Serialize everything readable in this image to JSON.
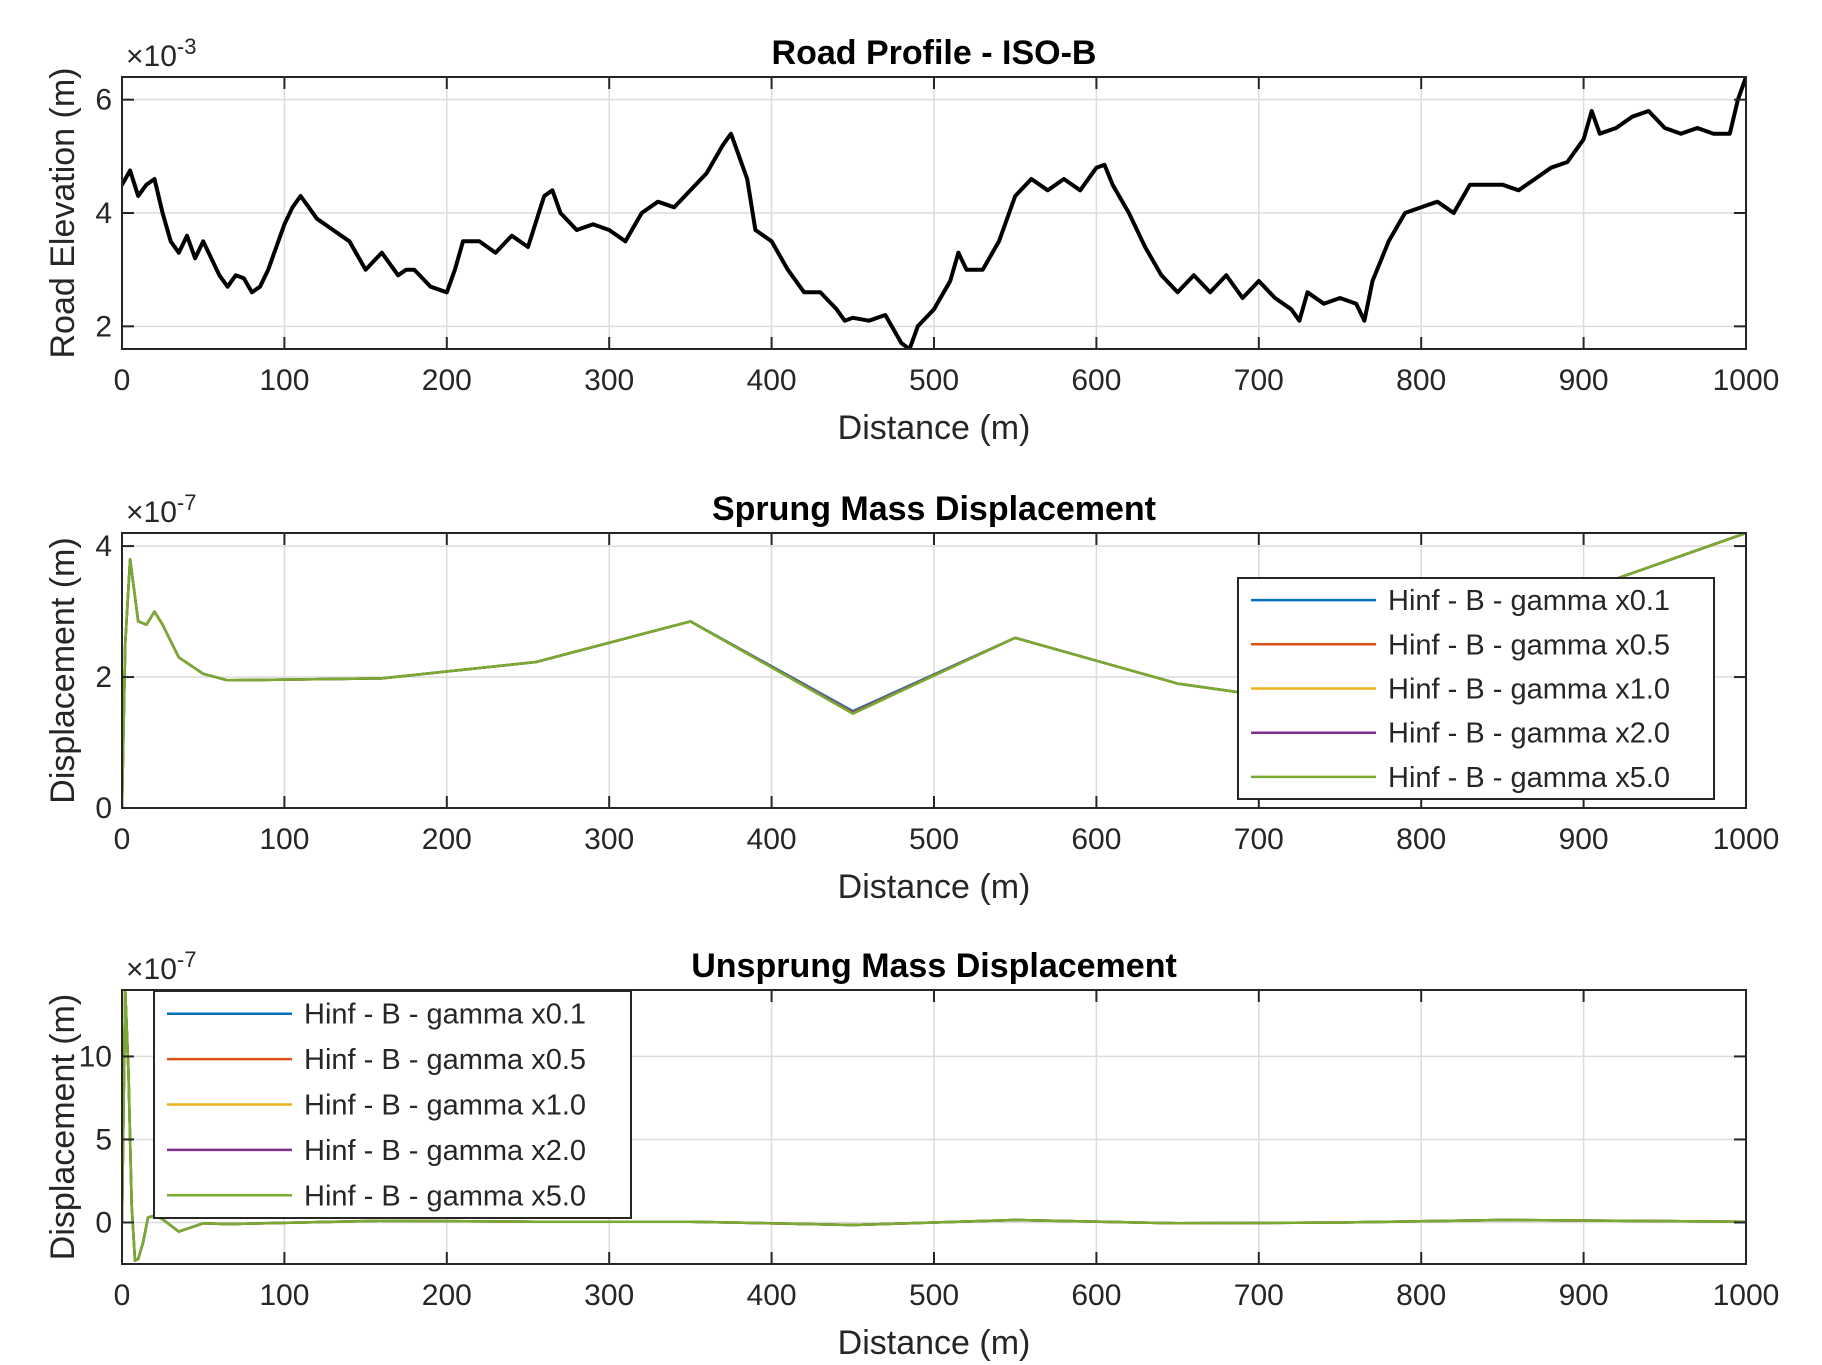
{
  "chart_data": [
    {
      "type": "line",
      "title": "Road Profile - ISO-B",
      "xlabel": "Distance (m)",
      "ylabel": "Road Elevation (m)",
      "y_exponent_label": "×10",
      "y_exponent_value": "-3",
      "xlim": [
        0,
        1000
      ],
      "ylim": [
        1.6,
        6.4
      ],
      "xticks": [
        0,
        100,
        200,
        300,
        400,
        500,
        600,
        700,
        800,
        900,
        1000
      ],
      "yticks": [
        2,
        4,
        6
      ],
      "grid": true,
      "legend": null,
      "series": [
        {
          "color": "#000000",
          "x": [
            0,
            5,
            10,
            15,
            20,
            25,
            30,
            35,
            40,
            45,
            50,
            55,
            60,
            65,
            70,
            75,
            80,
            85,
            90,
            95,
            100,
            105,
            110,
            115,
            120,
            130,
            140,
            150,
            160,
            170,
            175,
            180,
            190,
            200,
            205,
            210,
            220,
            230,
            240,
            250,
            260,
            265,
            270,
            280,
            290,
            300,
            310,
            320,
            330,
            340,
            350,
            360,
            370,
            375,
            380,
            385,
            390,
            400,
            410,
            420,
            430,
            440,
            445,
            450,
            460,
            470,
            480,
            485,
            490,
            500,
            510,
            515,
            520,
            530,
            540,
            550,
            560,
            570,
            580,
            590,
            600,
            605,
            610,
            620,
            630,
            640,
            650,
            660,
            670,
            680,
            690,
            700,
            710,
            720,
            725,
            730,
            740,
            750,
            760,
            765,
            770,
            780,
            790,
            800,
            810,
            820,
            830,
            840,
            850,
            860,
            870,
            880,
            890,
            900,
            905,
            910,
            920,
            930,
            940,
            950,
            960,
            970,
            980,
            990,
            995,
            1000
          ],
          "y": [
            4.5,
            4.75,
            4.3,
            4.5,
            4.6,
            4.0,
            3.5,
            3.3,
            3.6,
            3.2,
            3.5,
            3.2,
            2.9,
            2.7,
            2.9,
            2.85,
            2.6,
            2.7,
            3.0,
            3.4,
            3.8,
            4.1,
            4.3,
            4.1,
            3.9,
            3.7,
            3.5,
            3.0,
            3.3,
            2.9,
            3.0,
            3.0,
            2.7,
            2.6,
            3.0,
            3.5,
            3.5,
            3.3,
            3.6,
            3.4,
            4.3,
            4.4,
            4.0,
            3.7,
            3.8,
            3.7,
            3.5,
            4.0,
            4.2,
            4.1,
            4.4,
            4.7,
            5.2,
            5.4,
            5.0,
            4.6,
            3.7,
            3.5,
            3.0,
            2.6,
            2.6,
            2.3,
            2.1,
            2.15,
            2.1,
            2.2,
            1.7,
            1.6,
            2.0,
            2.3,
            2.8,
            3.3,
            3.0,
            3.0,
            3.5,
            4.3,
            4.6,
            4.4,
            4.6,
            4.4,
            4.8,
            4.85,
            4.5,
            4.0,
            3.4,
            2.9,
            2.6,
            2.9,
            2.6,
            2.9,
            2.5,
            2.8,
            2.5,
            2.3,
            2.1,
            2.6,
            2.4,
            2.5,
            2.4,
            2.1,
            2.8,
            3.5,
            4.0,
            4.1,
            4.2,
            4.0,
            4.5,
            4.5,
            4.5,
            4.4,
            4.6,
            4.8,
            4.9,
            5.3,
            5.8,
            5.4,
            5.5,
            5.7,
            5.8,
            5.5,
            5.4,
            5.5,
            5.4,
            5.4,
            6.0,
            6.4
          ]
        }
      ]
    },
    {
      "type": "line",
      "title": "Sprung Mass Displacement",
      "xlabel": "Distance (m)",
      "ylabel": "Displacement (m)",
      "y_exponent_label": "×10",
      "y_exponent_value": "-7",
      "xlim": [
        0,
        1000
      ],
      "ylim": [
        0,
        4.2
      ],
      "xticks": [
        0,
        100,
        200,
        300,
        400,
        500,
        600,
        700,
        800,
        900,
        1000
      ],
      "yticks": [
        0,
        2,
        4
      ],
      "grid": true,
      "legend": "top-right",
      "series": [
        {
          "name": "Hinf - B - gamma x0.1",
          "color": "#0072BD",
          "x": [
            0,
            2,
            5,
            10,
            15,
            20,
            25,
            35,
            50,
            65,
            160,
            255,
            350,
            450,
            550,
            650,
            750,
            850,
            920,
            1000
          ],
          "y": [
            0,
            2.5,
            3.8,
            2.85,
            2.8,
            3.0,
            2.8,
            2.3,
            2.05,
            1.95,
            1.98,
            2.23,
            2.85,
            1.48,
            2.6,
            1.9,
            1.55,
            2.8,
            3.5,
            4.2
          ]
        },
        {
          "name": "Hinf - B - gamma x0.5",
          "color": "#D95319",
          "x": [
            0,
            2,
            5,
            10,
            15,
            20,
            25,
            35,
            50,
            65,
            160,
            255,
            350,
            450,
            550,
            650,
            750,
            850,
            920,
            1000
          ],
          "y": [
            0,
            2.5,
            3.8,
            2.85,
            2.8,
            3.0,
            2.8,
            2.3,
            2.05,
            1.95,
            1.98,
            2.23,
            2.85,
            1.46,
            2.6,
            1.9,
            1.55,
            2.8,
            3.5,
            4.2
          ]
        },
        {
          "name": "Hinf - B - gamma x1.0",
          "color": "#EDB120",
          "x": [
            0,
            2,
            5,
            10,
            15,
            20,
            25,
            35,
            50,
            65,
            160,
            255,
            350,
            450,
            550,
            650,
            750,
            850,
            920,
            1000
          ],
          "y": [
            0,
            2.5,
            3.8,
            2.85,
            2.8,
            3.0,
            2.8,
            2.3,
            2.05,
            1.95,
            1.98,
            2.23,
            2.85,
            1.45,
            2.6,
            1.9,
            1.55,
            2.8,
            3.5,
            4.2
          ]
        },
        {
          "name": "Hinf - B - gamma x2.0",
          "color": "#7E2F8E",
          "x": [
            0,
            2,
            5,
            10,
            15,
            20,
            25,
            35,
            50,
            65,
            160,
            255,
            350,
            450,
            550,
            650,
            750,
            850,
            920,
            1000
          ],
          "y": [
            0,
            2.5,
            3.8,
            2.85,
            2.8,
            3.0,
            2.8,
            2.3,
            2.05,
            1.95,
            1.98,
            2.23,
            2.85,
            1.45,
            2.6,
            1.9,
            1.55,
            2.8,
            3.5,
            4.2
          ]
        },
        {
          "name": "Hinf - B - gamma x5.0",
          "color": "#77AC30",
          "x": [
            0,
            2,
            5,
            10,
            15,
            20,
            25,
            35,
            50,
            65,
            160,
            255,
            350,
            450,
            550,
            650,
            750,
            850,
            920,
            1000
          ],
          "y": [
            0,
            2.5,
            3.8,
            2.85,
            2.8,
            3.0,
            2.8,
            2.3,
            2.05,
            1.95,
            1.98,
            2.23,
            2.85,
            1.44,
            2.6,
            1.9,
            1.55,
            2.8,
            3.5,
            4.2
          ]
        }
      ]
    },
    {
      "type": "line",
      "title": "Unsprung Mass Displacement",
      "xlabel": "Distance (m)",
      "ylabel": "Displacement (m)",
      "y_exponent_label": "×10",
      "y_exponent_value": "-7",
      "xlim": [
        0,
        1000
      ],
      "ylim": [
        -2.5,
        14
      ],
      "xticks": [
        0,
        100,
        200,
        300,
        400,
        500,
        600,
        700,
        800,
        900,
        1000
      ],
      "yticks": [
        0,
        5,
        10
      ],
      "grid": true,
      "legend": "top-left",
      "series": [
        {
          "name": "Hinf - B - gamma x0.1",
          "color": "#0072BD",
          "x": [
            0,
            2,
            4,
            6,
            8,
            10,
            13,
            16,
            20,
            25,
            35,
            50,
            65,
            160,
            255,
            350,
            450,
            550,
            650,
            750,
            850,
            1000
          ],
          "y": [
            0,
            14,
            9,
            1,
            -2.3,
            -2.2,
            -1.2,
            0.3,
            0.4,
            0.2,
            -0.55,
            -0.05,
            -0.1,
            0.1,
            0.05,
            0.05,
            -0.15,
            0.15,
            -0.05,
            0.0,
            0.15,
            0.05
          ]
        },
        {
          "name": "Hinf - B - gamma x0.5",
          "color": "#D95319",
          "x": [
            0,
            2,
            4,
            6,
            8,
            10,
            13,
            16,
            20,
            25,
            35,
            50,
            65,
            160,
            255,
            350,
            450,
            550,
            650,
            750,
            850,
            1000
          ],
          "y": [
            0,
            14,
            9,
            1,
            -2.3,
            -2.2,
            -1.2,
            0.3,
            0.4,
            0.2,
            -0.55,
            -0.05,
            -0.1,
            0.1,
            0.05,
            0.05,
            -0.15,
            0.15,
            -0.05,
            0.0,
            0.15,
            0.05
          ]
        },
        {
          "name": "Hinf - B - gamma x1.0",
          "color": "#EDB120",
          "x": [
            0,
            2,
            4,
            6,
            8,
            10,
            13,
            16,
            20,
            25,
            35,
            50,
            65,
            160,
            255,
            350,
            450,
            550,
            650,
            750,
            850,
            1000
          ],
          "y": [
            0,
            14,
            9,
            1,
            -2.3,
            -2.2,
            -1.2,
            0.3,
            0.4,
            0.2,
            -0.55,
            -0.05,
            -0.1,
            0.1,
            0.05,
            0.05,
            -0.15,
            0.15,
            -0.05,
            0.0,
            0.15,
            0.05
          ]
        },
        {
          "name": "Hinf - B - gamma x2.0",
          "color": "#7E2F8E",
          "x": [
            0,
            2,
            4,
            6,
            8,
            10,
            13,
            16,
            20,
            25,
            35,
            50,
            65,
            160,
            255,
            350,
            450,
            550,
            650,
            750,
            850,
            1000
          ],
          "y": [
            0,
            14,
            9,
            1,
            -2.3,
            -2.2,
            -1.2,
            0.3,
            0.4,
            0.2,
            -0.55,
            -0.05,
            -0.1,
            0.1,
            0.05,
            0.05,
            -0.15,
            0.15,
            -0.05,
            0.0,
            0.15,
            0.05
          ]
        },
        {
          "name": "Hinf - B - gamma x5.0",
          "color": "#77AC30",
          "x": [
            0,
            2,
            4,
            6,
            8,
            10,
            13,
            16,
            20,
            25,
            35,
            50,
            65,
            160,
            255,
            350,
            450,
            550,
            650,
            750,
            850,
            1000
          ],
          "y": [
            0,
            14,
            9,
            1,
            -2.3,
            -2.2,
            -1.2,
            0.3,
            0.4,
            0.2,
            -0.55,
            -0.05,
            -0.1,
            0.1,
            0.05,
            0.05,
            -0.15,
            0.15,
            -0.05,
            0.0,
            0.15,
            0.05
          ]
        }
      ]
    }
  ]
}
